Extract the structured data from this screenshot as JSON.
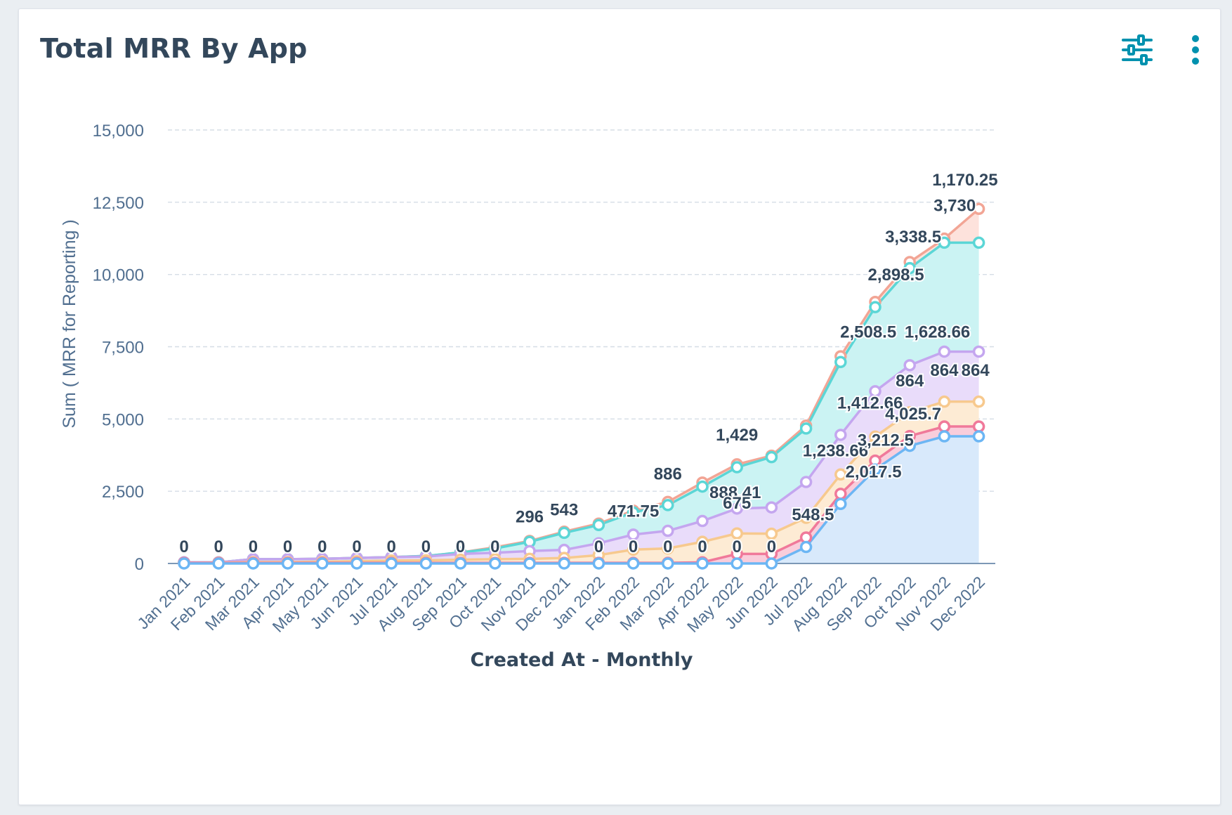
{
  "card": {
    "title": "Total MRR By App",
    "filter_icon": "sliders-icon",
    "more_icon": "vertical-dots-icon"
  },
  "colors": {
    "accent": "#0091ae",
    "title": "#33475b",
    "axis_text": "#516f90",
    "series": [
      "#f2a595",
      "#5bd6d6",
      "#c4a6ef",
      "#f7c98e",
      "#f0799a",
      "#6cb6f4"
    ],
    "fills": [
      "#fde2dc",
      "#cbf3f3",
      "#e9dcfa",
      "#fdebd4",
      "#f9cddb",
      "#d8e9fb"
    ]
  },
  "chart_data": {
    "type": "area",
    "stacked": true,
    "categories": [
      "Jan 2021",
      "Feb 2021",
      "Mar 2021",
      "Apr 2021",
      "May 2021",
      "Jun 2021",
      "Jul 2021",
      "Aug 2021",
      "Sep 2021",
      "Oct 2021",
      "Nov 2021",
      "Dec 2021",
      "Jan 2022",
      "Feb 2022",
      "Mar 2022",
      "Apr 2022",
      "May 2022",
      "Jun 2022",
      "Jul 2022",
      "Aug 2022",
      "Sep 2022",
      "Oct 2022",
      "Nov 2022",
      "Dec 2022"
    ],
    "xlabel": "Created At - Monthly",
    "ylabel": "Sum ( MRR for Reporting )",
    "ylim": [
      0,
      15000
    ],
    "yticks": [
      0,
      2500,
      5000,
      7500,
      10000,
      12500,
      15000
    ],
    "ytick_labels": [
      "0",
      "2,500",
      "5,000",
      "7,500",
      "10,000",
      "12,500",
      "15,000"
    ],
    "grid": true,
    "series_cumulative": [
      {
        "values": [
          40,
          40,
          150,
          150,
          160,
          190,
          220,
          260,
          380,
          560,
          780,
          1100,
          1380,
          1830,
          2130,
          2800,
          3430,
          3730,
          4770,
          7170,
          9050,
          10430,
          11240,
          12270
        ]
      },
      {
        "values": [
          40,
          40,
          150,
          150,
          160,
          190,
          220,
          260,
          380,
          520,
          750,
          1060,
          1330,
          1770,
          2020,
          2660,
          3330,
          3680,
          4670,
          6970,
          8870,
          10220,
          11100,
          11100
        ]
      },
      {
        "values": [
          40,
          40,
          150,
          150,
          160,
          190,
          220,
          240,
          330,
          370,
          430,
          470,
          700,
          1000,
          1130,
          1470,
          1900,
          1940,
          2820,
          4450,
          5960,
          6860,
          7330,
          7330
        ]
      },
      {
        "values": [
          20,
          30,
          50,
          50,
          60,
          80,
          100,
          110,
          130,
          150,
          160,
          190,
          290,
          480,
          520,
          750,
          1040,
          1030,
          1580,
          3080,
          4390,
          5230,
          5600,
          5600
        ]
      },
      {
        "values": [
          20,
          20,
          20,
          20,
          20,
          20,
          20,
          20,
          20,
          20,
          20,
          20,
          20,
          20,
          20,
          40,
          330,
          330,
          900,
          2410,
          3560,
          4410,
          4740,
          4740
        ]
      },
      {
        "values": [
          0,
          0,
          0,
          0,
          0,
          0,
          0,
          0,
          0,
          0,
          0,
          0,
          0,
          0,
          0,
          0,
          0,
          0,
          570,
          2060,
          3250,
          4070,
          4400,
          4400
        ]
      }
    ],
    "data_labels": [
      {
        "i": 0,
        "v": 0,
        "text": "0"
      },
      {
        "i": 1,
        "v": 0,
        "text": "0"
      },
      {
        "i": 2,
        "v": 0,
        "text": "0"
      },
      {
        "i": 3,
        "v": 0,
        "text": "0"
      },
      {
        "i": 4,
        "v": 0,
        "text": "0"
      },
      {
        "i": 5,
        "v": 0,
        "text": "0"
      },
      {
        "i": 6,
        "v": 0,
        "text": "0"
      },
      {
        "i": 7,
        "v": 0,
        "text": "0"
      },
      {
        "i": 8,
        "v": 0,
        "text": "0"
      },
      {
        "i": 9,
        "v": 0,
        "text": "0"
      },
      {
        "i": 10,
        "v": 1080,
        "text": "296"
      },
      {
        "i": 11,
        "v": 1330,
        "text": "543"
      },
      {
        "i": 13,
        "v": 1280,
        "text": "471.75"
      },
      {
        "i": 12,
        "v": 0,
        "text": "0"
      },
      {
        "i": 13,
        "v": 0,
        "text": "0"
      },
      {
        "i": 14,
        "v": 2570,
        "text": "886"
      },
      {
        "i": 14,
        "v": 0,
        "text": "0"
      },
      {
        "i": 15,
        "v": 0,
        "text": "0"
      },
      {
        "i": 15.95,
        "v": 1920,
        "text": "888.41"
      },
      {
        "i": 16,
        "v": 3910,
        "text": "1,429"
      },
      {
        "i": 16,
        "v": 1550,
        "text": "675"
      },
      {
        "i": 16,
        "v": 0,
        "text": "0"
      },
      {
        "i": 17,
        "v": 0,
        "text": "0"
      },
      {
        "i": 18.2,
        "v": 1150,
        "text": "548.5"
      },
      {
        "i": 18.85,
        "v": 3370,
        "text": "1,238.66"
      },
      {
        "i": 19.85,
        "v": 5020,
        "text": "1,412.66"
      },
      {
        "i": 19.95,
        "v": 2640,
        "text": "2,017.5"
      },
      {
        "i": 20.3,
        "v": 3730,
        "text": "3,212.5"
      },
      {
        "i": 19.8,
        "v": 7480,
        "text": "2,508.5"
      },
      {
        "i": 20.6,
        "v": 9460,
        "text": "2,898.5"
      },
      {
        "i": 21,
        "v": 5780,
        "text": "864"
      },
      {
        "i": 21.1,
        "v": 4640,
        "text": "4,025.7"
      },
      {
        "i": 21.8,
        "v": 7480,
        "text": "1,628.66"
      },
      {
        "i": 21.1,
        "v": 10770,
        "text": "3,338.5"
      },
      {
        "i": 22,
        "v": 6150,
        "text": "864"
      },
      {
        "i": 22.9,
        "v": 6150,
        "text": "864"
      },
      {
        "i": 22.3,
        "v": 11850,
        "text": "3,730"
      },
      {
        "i": 22.6,
        "v": 12740,
        "text": "1,170.25"
      }
    ]
  }
}
